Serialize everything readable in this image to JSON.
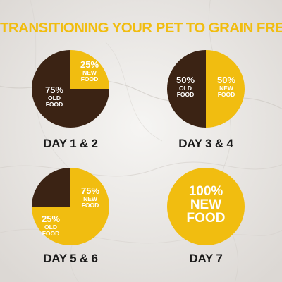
{
  "title": "TRANSITIONING YOUR PET TO GRAIN FREE",
  "colors": {
    "title": "#f1bd10",
    "new_food": "#f1bd10",
    "old_food": "#3b2314",
    "label_on_old": "#ffffff",
    "label_on_new": "#ffffff",
    "background": "#ece9e6"
  },
  "chart_data": [
    {
      "type": "pie",
      "title": "DAY 1 & 2",
      "slices": [
        {
          "pct_label": "25%",
          "name_line1": "NEW",
          "name_line2": "FOOD",
          "value": 25,
          "color": "#f1bd10"
        },
        {
          "pct_label": "75%",
          "name_line1": "OLD",
          "name_line2": "FOOD",
          "value": 75,
          "color": "#3b2314"
        }
      ]
    },
    {
      "type": "pie",
      "title": "DAY 3 & 4",
      "slices": [
        {
          "pct_label": "50%",
          "name_line1": "OLD",
          "name_line2": "FOOD",
          "value": 50,
          "color": "#3b2314"
        },
        {
          "pct_label": "50%",
          "name_line1": "NEW",
          "name_line2": "FOOD",
          "value": 50,
          "color": "#f1bd10"
        }
      ]
    },
    {
      "type": "pie",
      "title": "DAY 5 & 6",
      "slices": [
        {
          "pct_label": "75%",
          "name_line1": "NEW",
          "name_line2": "FOOD",
          "value": 75,
          "color": "#f1bd10"
        },
        {
          "pct_label": "25%",
          "name_line1": "OLD",
          "name_line2": "FOOD",
          "value": 25,
          "color": "#3b2314"
        }
      ]
    },
    {
      "type": "pie",
      "title": "DAY 7",
      "slices": [
        {
          "pct_label": "100%",
          "name_line1": "NEW",
          "name_line2": "FOOD",
          "value": 100,
          "color": "#f1bd10"
        }
      ]
    }
  ]
}
